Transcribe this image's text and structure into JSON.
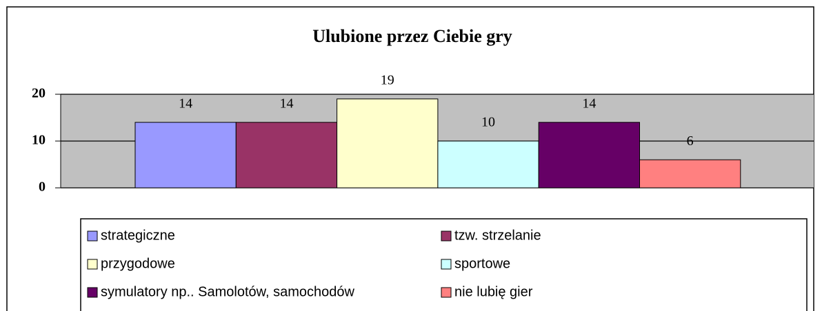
{
  "chart_data": {
    "type": "bar",
    "title": "Ulubione przez Ciebie gry",
    "categories": [
      null
    ],
    "series": [
      {
        "name": "strategiczne",
        "color": "#9999ff",
        "values": [
          14
        ]
      },
      {
        "name": "tzw. strzelanie",
        "color": "#993366",
        "values": [
          14
        ]
      },
      {
        "name": "przygodowe",
        "color": "#ffffcc",
        "values": [
          19
        ]
      },
      {
        "name": "sportowe",
        "color": "#ccffff",
        "values": [
          10
        ]
      },
      {
        "name": "symulatory np.. Samolotów, samochodów",
        "color": "#660066",
        "values": [
          14
        ]
      },
      {
        "name": "nie lubię gier",
        "color": "#ff8080",
        "values": [
          6
        ]
      }
    ],
    "ylim": [
      0,
      20
    ],
    "yticks": [
      0,
      10,
      20
    ],
    "grid": true,
    "legend": "bottom"
  }
}
